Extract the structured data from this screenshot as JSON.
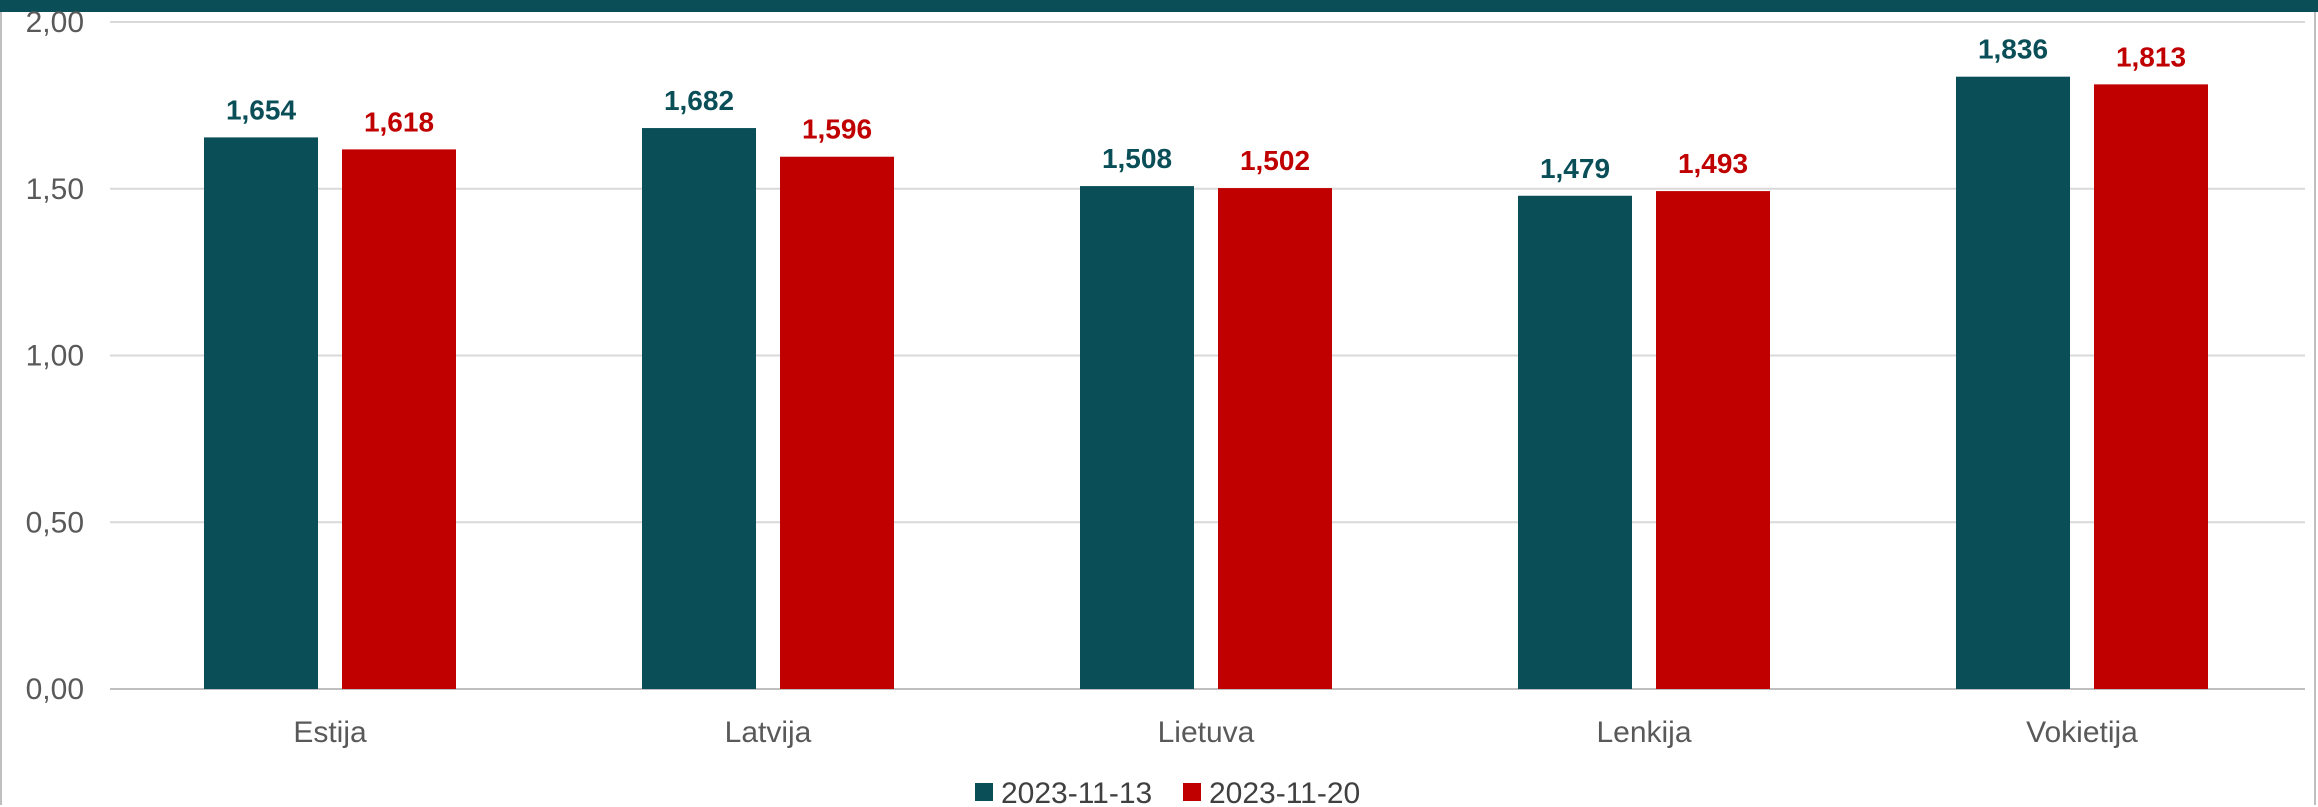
{
  "chart_data": {
    "type": "bar",
    "categories": [
      "Estija",
      "Latvija",
      "Lietuva",
      "Lenkija",
      "Vokietija"
    ],
    "series": [
      {
        "name": "2023-11-13",
        "color": "#0a4f58",
        "values": [
          1.654,
          1.682,
          1.508,
          1.479,
          1.836
        ]
      },
      {
        "name": "2023-11-20",
        "color": "#c00000",
        "values": [
          1.618,
          1.596,
          1.502,
          1.493,
          1.813
        ]
      }
    ],
    "data_labels": [
      [
        "1,654",
        "1,682",
        "1,508",
        "1,479",
        "1,836"
      ],
      [
        "1,618",
        "1,596",
        "1,502",
        "1,493",
        "1,813"
      ]
    ],
    "y_ticks": [
      0,
      0.5,
      1.0,
      1.5,
      2.0
    ],
    "y_tick_labels": [
      "0,00",
      "0,50",
      "1,00",
      "1,50",
      "2,00"
    ],
    "ylim": [
      0,
      2.0
    ],
    "grid": true,
    "legend_position": "bottom-center",
    "title": "",
    "xlabel": "",
    "ylabel": ""
  },
  "colors": {
    "accent": "#0a4f58",
    "secondary": "#c00000",
    "grid": "#d9d9d9"
  }
}
